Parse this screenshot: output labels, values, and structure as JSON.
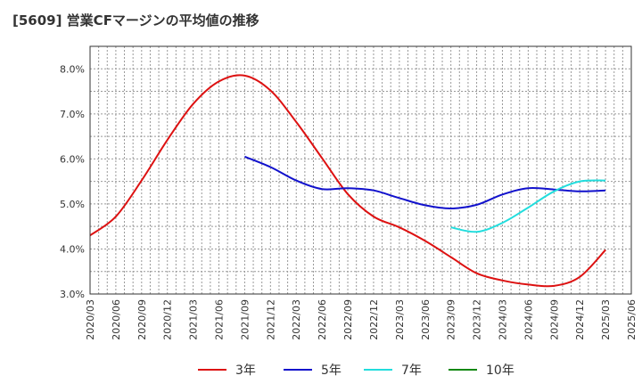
{
  "title": "[5609]  営業CFマージンの平均値の推移",
  "chart_data": {
    "type": "line",
    "ylim": [
      3.0,
      8.5
    ],
    "ytick_values": [
      3.0,
      4.0,
      5.0,
      6.0,
      7.0,
      8.0
    ],
    "yticks": [
      "3.0%",
      "4.0%",
      "5.0%",
      "6.0%",
      "7.0%",
      "8.0%"
    ],
    "x": [
      "2020/03",
      "2020/06",
      "2020/09",
      "2020/12",
      "2021/03",
      "2021/06",
      "2021/09",
      "2021/12",
      "2022/03",
      "2022/06",
      "2022/09",
      "2022/12",
      "2023/03",
      "2023/06",
      "2023/09",
      "2023/12",
      "2024/03",
      "2024/06",
      "2024/09",
      "2024/12",
      "2025/03",
      "2025/06"
    ],
    "grid": true,
    "legend_position": "bottom",
    "series": [
      {
        "name": "3年",
        "color": "#dd1111",
        "values": [
          4.3,
          4.72,
          5.52,
          6.42,
          7.22,
          7.72,
          7.85,
          7.52,
          6.82,
          6.02,
          5.22,
          4.72,
          4.48,
          4.18,
          3.82,
          3.46,
          3.3,
          3.21,
          3.18,
          3.38,
          3.98,
          null
        ]
      },
      {
        "name": "5年",
        "color": "#1111cc",
        "values": [
          null,
          null,
          null,
          null,
          null,
          null,
          6.05,
          5.82,
          5.52,
          5.33,
          5.35,
          5.3,
          5.13,
          4.97,
          4.9,
          4.98,
          5.21,
          5.35,
          5.32,
          5.28,
          5.3,
          null
        ]
      },
      {
        "name": "7年",
        "color": "#22dddd",
        "values": [
          null,
          null,
          null,
          null,
          null,
          null,
          null,
          null,
          null,
          null,
          null,
          null,
          null,
          null,
          4.48,
          4.38,
          4.58,
          4.92,
          5.28,
          5.5,
          5.52,
          null
        ]
      },
      {
        "name": "10年",
        "color": "#118811",
        "values": [
          null,
          null,
          null,
          null,
          null,
          null,
          null,
          null,
          null,
          null,
          null,
          null,
          null,
          null,
          null,
          null,
          null,
          null,
          null,
          null,
          null,
          null
        ]
      }
    ]
  }
}
